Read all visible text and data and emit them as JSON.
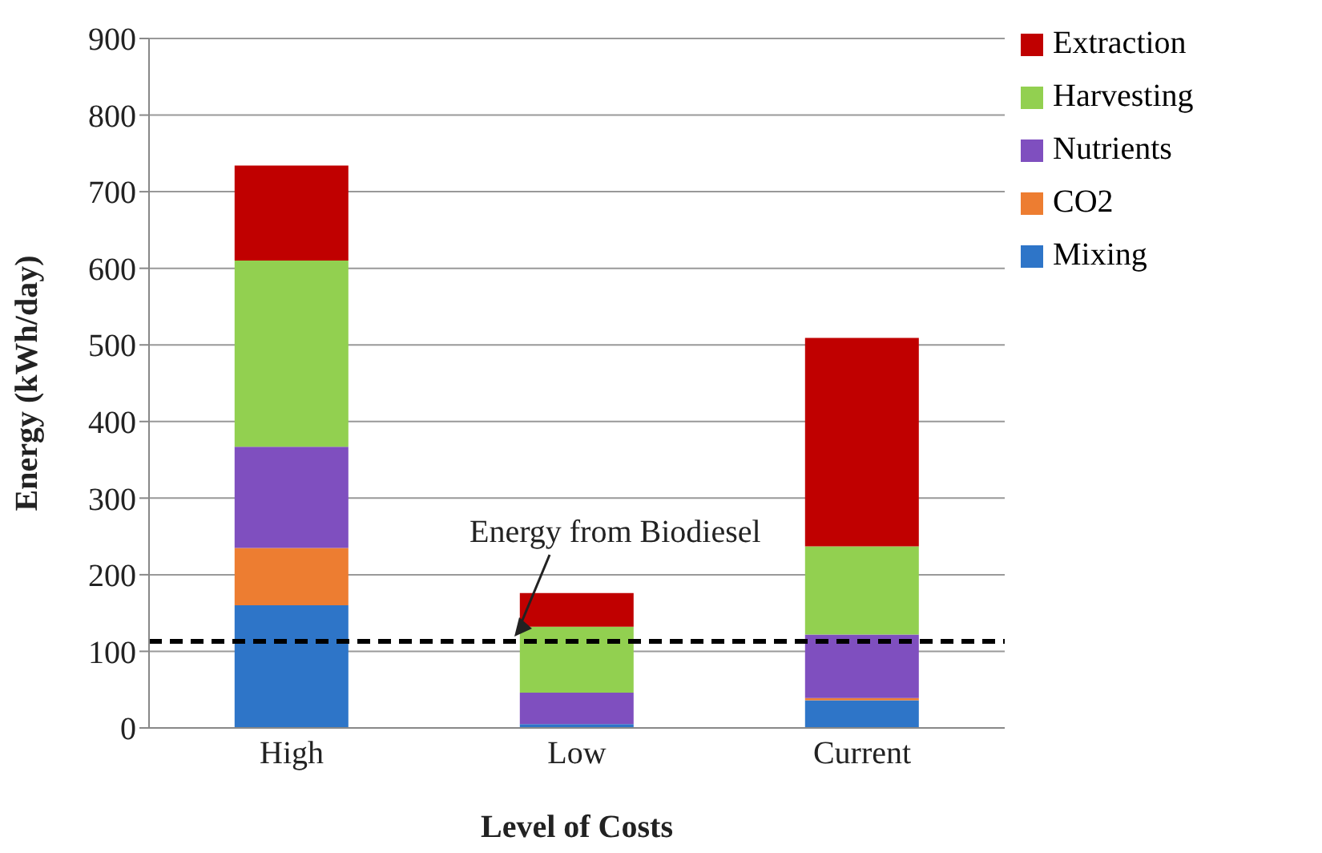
{
  "chart_data": {
    "type": "bar",
    "stacked": true,
    "xlabel": "Level of Costs",
    "ylabel": "Energy (kWh/day)",
    "categories": [
      "High",
      "Low",
      "Current"
    ],
    "series": [
      {
        "name": "Mixing",
        "color": "#2e75c8",
        "values": [
          160,
          5,
          36
        ]
      },
      {
        "name": "CO2",
        "color": "#ed7d31",
        "values": [
          75,
          0,
          3
        ]
      },
      {
        "name": "Nutrients",
        "color": "#7f4fbf",
        "values": [
          132,
          41,
          83
        ]
      },
      {
        "name": "Harvesting",
        "color": "#92d050",
        "values": [
          243,
          86,
          115
        ]
      },
      {
        "name": "Extraction",
        "color": "#c00000",
        "values": [
          124,
          44,
          272
        ]
      }
    ],
    "ylim": [
      0,
      900
    ],
    "yticks": [
      0,
      100,
      200,
      300,
      400,
      500,
      600,
      700,
      800,
      900
    ],
    "grid": "y",
    "legend": "top right",
    "ref_lines": [
      {
        "axis": "y",
        "value": 113,
        "label": "Energy from Biodiesel",
        "line_style": "dashed",
        "color": "#000000"
      }
    ]
  }
}
